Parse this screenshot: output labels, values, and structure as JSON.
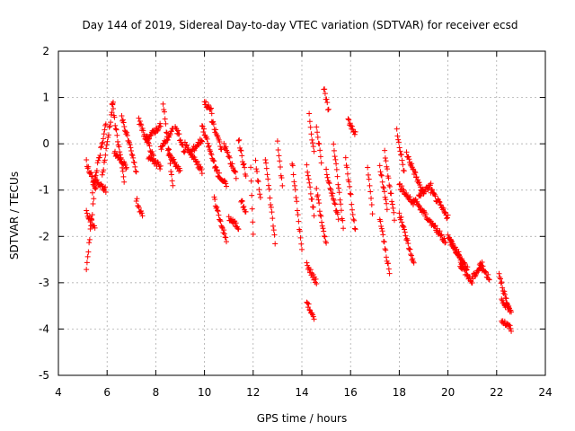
{
  "chart_data": {
    "type": "scatter",
    "title": "Day 144 of 2019, Sidereal Day-to-day VTEC variation (SDTVAR) for receiver ecsd",
    "xlabel": "GPS time / hours",
    "ylabel": "SDTVAR / TECUs",
    "xlim": [
      4,
      24
    ],
    "ylim": [
      -5,
      2
    ],
    "xticks": [
      "4",
      "6",
      "8",
      "10",
      "12",
      "14",
      "16",
      "18",
      "20",
      "22",
      "24"
    ],
    "yticks": [
      "2",
      "1",
      "0",
      "-1",
      "-2",
      "-3",
      "-4",
      "-5"
    ],
    "grid": true,
    "marker": "+",
    "color": "#ff0000",
    "segments": [
      {
        "x0": 5.15,
        "x1": 5.55,
        "y0": -0.4,
        "y1": -1.0
      },
      {
        "x0": 5.15,
        "x1": 5.45,
        "y0": -2.7,
        "y1": -1.2
      },
      {
        "x0": 5.15,
        "x1": 5.5,
        "y0": -1.5,
        "y1": -1.8
      },
      {
        "x0": 5.4,
        "x1": 5.95,
        "y0": -1.0,
        "y1": 0.4
      },
      {
        "x0": 5.5,
        "x1": 5.95,
        "y0": -0.8,
        "y1": -1.0
      },
      {
        "x0": 5.8,
        "x1": 6.25,
        "y0": -0.7,
        "y1": 0.9
      },
      {
        "x0": 6.2,
        "x1": 6.7,
        "y0": 0.9,
        "y1": -0.8
      },
      {
        "x0": 6.3,
        "x1": 6.8,
        "y0": -0.2,
        "y1": -0.5
      },
      {
        "x0": 6.6,
        "x1": 7.2,
        "y0": 0.6,
        "y1": -0.6
      },
      {
        "x0": 7.2,
        "x1": 7.45,
        "y0": -1.2,
        "y1": -1.6
      },
      {
        "x0": 7.3,
        "x1": 7.9,
        "y0": 0.5,
        "y1": -0.3
      },
      {
        "x0": 7.6,
        "x1": 8.2,
        "y0": 0.1,
        "y1": 0.4
      },
      {
        "x0": 7.7,
        "x1": 8.2,
        "y0": -0.3,
        "y1": -0.5
      },
      {
        "x0": 8.2,
        "x1": 8.7,
        "y0": -0.1,
        "y1": 0.3
      },
      {
        "x0": 8.3,
        "x1": 8.7,
        "y0": 0.9,
        "y1": -0.9
      },
      {
        "x0": 8.5,
        "x1": 9.0,
        "y0": -0.2,
        "y1": -0.6
      },
      {
        "x0": 8.8,
        "x1": 9.2,
        "y0": 0.4,
        "y1": -0.2
      },
      {
        "x0": 9.2,
        "x1": 9.9,
        "y0": 0.0,
        "y1": -0.6
      },
      {
        "x0": 9.4,
        "x1": 9.9,
        "y0": -0.2,
        "y1": 0.1
      },
      {
        "x0": 10.0,
        "x1": 10.3,
        "y0": 0.9,
        "y1": 0.7
      },
      {
        "x0": 9.9,
        "x1": 10.5,
        "y0": 0.4,
        "y1": -0.6
      },
      {
        "x0": 10.3,
        "x1": 10.7,
        "y0": 0.5,
        "y1": -0.1
      },
      {
        "x0": 10.5,
        "x1": 10.9,
        "y0": -0.6,
        "y1": -0.9
      },
      {
        "x0": 10.4,
        "x1": 10.9,
        "y0": -1.2,
        "y1": -2.1
      },
      {
        "x0": 10.8,
        "x1": 11.3,
        "y0": 0.0,
        "y1": -0.7
      },
      {
        "x0": 11.0,
        "x1": 11.4,
        "y0": -1.6,
        "y1": -1.8
      },
      {
        "x0": 11.4,
        "x1": 11.7,
        "y0": 0.1,
        "y1": -0.7
      },
      {
        "x0": 11.5,
        "x1": 11.7,
        "y0": -1.2,
        "y1": -1.5
      },
      {
        "x0": 11.9,
        "x1": 12.0,
        "y0": -0.5,
        "y1": -2.0
      },
      {
        "x0": 12.1,
        "x1": 12.3,
        "y0": -0.4,
        "y1": -1.2
      },
      {
        "x0": 12.5,
        "x1": 12.9,
        "y0": -0.3,
        "y1": -2.1
      },
      {
        "x0": 13.0,
        "x1": 13.2,
        "y0": 0.0,
        "y1": -0.9
      },
      {
        "x0": 13.6,
        "x1": 14.0,
        "y0": -0.4,
        "y1": -2.3
      },
      {
        "x0": 14.2,
        "x1": 14.5,
        "y0": -0.5,
        "y1": -1.5
      },
      {
        "x0": 14.2,
        "x1": 14.6,
        "y0": -2.6,
        "y1": -3.0
      },
      {
        "x0": 14.2,
        "x1": 14.5,
        "y0": -3.4,
        "y1": -3.8
      },
      {
        "x0": 14.3,
        "x1": 14.5,
        "y0": 0.6,
        "y1": -0.2
      },
      {
        "x0": 14.6,
        "x1": 14.8,
        "y0": 0.4,
        "y1": -0.4
      },
      {
        "x0": 14.6,
        "x1": 15.0,
        "y0": -1.0,
        "y1": -2.2
      },
      {
        "x0": 14.9,
        "x1": 15.1,
        "y0": 1.2,
        "y1": 0.7
      },
      {
        "x0": 15.0,
        "x1": 15.5,
        "y0": -0.6,
        "y1": -1.6
      },
      {
        "x0": 15.3,
        "x1": 15.7,
        "y0": 0.0,
        "y1": -1.8
      },
      {
        "x0": 15.8,
        "x1": 16.2,
        "y0": -0.3,
        "y1": -1.9
      },
      {
        "x0": 15.9,
        "x1": 16.2,
        "y0": 0.5,
        "y1": 0.2
      },
      {
        "x0": 16.7,
        "x1": 16.9,
        "y0": -0.5,
        "y1": -1.5
      },
      {
        "x0": 17.2,
        "x1": 17.5,
        "y0": -0.5,
        "y1": -1.4
      },
      {
        "x0": 17.2,
        "x1": 17.6,
        "y0": -1.6,
        "y1": -2.8
      },
      {
        "x0": 17.4,
        "x1": 17.8,
        "y0": -0.2,
        "y1": -1.6
      },
      {
        "x0": 17.9,
        "x1": 18.2,
        "y0": 0.3,
        "y1": -0.6
      },
      {
        "x0": 18.0,
        "x1": 18.6,
        "y0": -0.9,
        "y1": -1.3
      },
      {
        "x0": 18.0,
        "x1": 18.6,
        "y0": -1.5,
        "y1": -2.6
      },
      {
        "x0": 18.3,
        "x1": 19.0,
        "y0": -0.2,
        "y1": -1.1
      },
      {
        "x0": 18.6,
        "x1": 19.3,
        "y0": -1.2,
        "y1": -1.7
      },
      {
        "x0": 18.8,
        "x1": 19.3,
        "y0": -1.1,
        "y1": -0.9
      },
      {
        "x0": 19.3,
        "x1": 20.0,
        "y0": -1.0,
        "y1": -1.6
      },
      {
        "x0": 19.3,
        "x1": 19.9,
        "y0": -1.7,
        "y1": -2.1
      },
      {
        "x0": 20.0,
        "x1": 20.6,
        "y0": -2.0,
        "y1": -2.6
      },
      {
        "x0": 20.1,
        "x1": 20.8,
        "y0": -2.1,
        "y1": -2.7
      },
      {
        "x0": 20.5,
        "x1": 21.0,
        "y0": -2.6,
        "y1": -3.0
      },
      {
        "x0": 21.0,
        "x1": 21.4,
        "y0": -2.9,
        "y1": -2.6
      },
      {
        "x0": 21.3,
        "x1": 21.7,
        "y0": -2.6,
        "y1": -2.9
      },
      {
        "x0": 22.1,
        "x1": 22.5,
        "y0": -2.8,
        "y1": -3.6
      },
      {
        "x0": 22.2,
        "x1": 22.6,
        "y0": -3.4,
        "y1": -3.6
      },
      {
        "x0": 22.2,
        "x1": 22.6,
        "y0": -3.8,
        "y1": -4.0
      }
    ]
  }
}
